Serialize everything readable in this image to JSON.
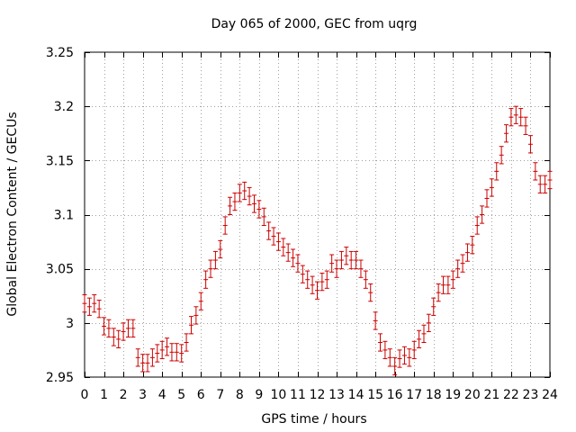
{
  "chart_data": {
    "type": "scatter",
    "title": "Day 065 of 2000, GEC from uqrg",
    "xlabel": "GPS time / hours",
    "ylabel": "Global Electron Content / GECUs",
    "xlim": [
      0,
      24
    ],
    "ylim": [
      2.95,
      3.25
    ],
    "xticks": [
      "0",
      "1",
      "2",
      "3",
      "4",
      "5",
      "6",
      "7",
      "8",
      "9",
      "10",
      "11",
      "12",
      "13",
      "14",
      "15",
      "16",
      "17",
      "18",
      "19",
      "20",
      "21",
      "22",
      "23",
      "24"
    ],
    "yticks": [
      "2.95",
      "3",
      "3.05",
      "3.1",
      "3.15",
      "3.2",
      "3.25"
    ],
    "grid": true,
    "marker_color": "#cc0000",
    "error_bar": 0.008,
    "series": [
      {
        "x": [
          0.0,
          0.25,
          0.5,
          0.75,
          1.0,
          1.25,
          1.5,
          1.75,
          2.0,
          2.25,
          2.5,
          2.75,
          3.0,
          3.25,
          3.5,
          3.75,
          4.0,
          4.25,
          4.5,
          4.75,
          5.0,
          5.25,
          5.5,
          5.75,
          6.0,
          6.25,
          6.5,
          6.75,
          7.0,
          7.25,
          7.5,
          7.75,
          8.0,
          8.25,
          8.5,
          8.75,
          9.0,
          9.25,
          9.5,
          9.75,
          10.0,
          10.25,
          10.5,
          10.75,
          11.0,
          11.25,
          11.5,
          11.75,
          12.0,
          12.25,
          12.5,
          12.75,
          13.0,
          13.25,
          13.5,
          13.75,
          14.0,
          14.25,
          14.5,
          14.75,
          15.0,
          15.25,
          15.5,
          15.75,
          16.0,
          16.25,
          16.5,
          16.75,
          17.0,
          17.25,
          17.5,
          17.75,
          18.0,
          18.25,
          18.5,
          18.75,
          19.0,
          19.25,
          19.5,
          19.75,
          20.0,
          20.25,
          20.5,
          20.75,
          21.0,
          21.25,
          21.5,
          21.75,
          22.0,
          22.25,
          22.5,
          22.75,
          23.0,
          23.25,
          23.5,
          23.75,
          24.0
        ],
        "values": [
          3.018,
          3.015,
          3.018,
          3.013,
          2.997,
          2.995,
          2.987,
          2.985,
          2.992,
          2.995,
          2.995,
          2.968,
          2.963,
          2.963,
          2.968,
          2.972,
          2.975,
          2.978,
          2.973,
          2.973,
          2.972,
          2.982,
          2.998,
          3.007,
          3.02,
          3.04,
          3.05,
          3.058,
          3.068,
          3.09,
          3.108,
          3.112,
          3.12,
          3.122,
          3.117,
          3.11,
          3.105,
          3.098,
          3.085,
          3.08,
          3.075,
          3.07,
          3.065,
          3.06,
          3.055,
          3.045,
          3.04,
          3.035,
          3.03,
          3.038,
          3.04,
          3.055,
          3.05,
          3.058,
          3.062,
          3.058,
          3.058,
          3.05,
          3.04,
          3.028,
          3.002,
          2.982,
          2.975,
          2.968,
          2.96,
          2.967,
          2.97,
          2.968,
          2.975,
          2.985,
          2.99,
          3.0,
          3.015,
          3.028,
          3.035,
          3.035,
          3.04,
          3.05,
          3.055,
          3.065,
          3.072,
          3.09,
          3.1,
          3.115,
          3.125,
          3.14,
          3.155,
          3.175,
          3.19,
          3.192,
          3.19,
          3.182,
          3.165,
          3.14,
          3.128,
          3.128,
          3.132
        ]
      }
    ]
  }
}
